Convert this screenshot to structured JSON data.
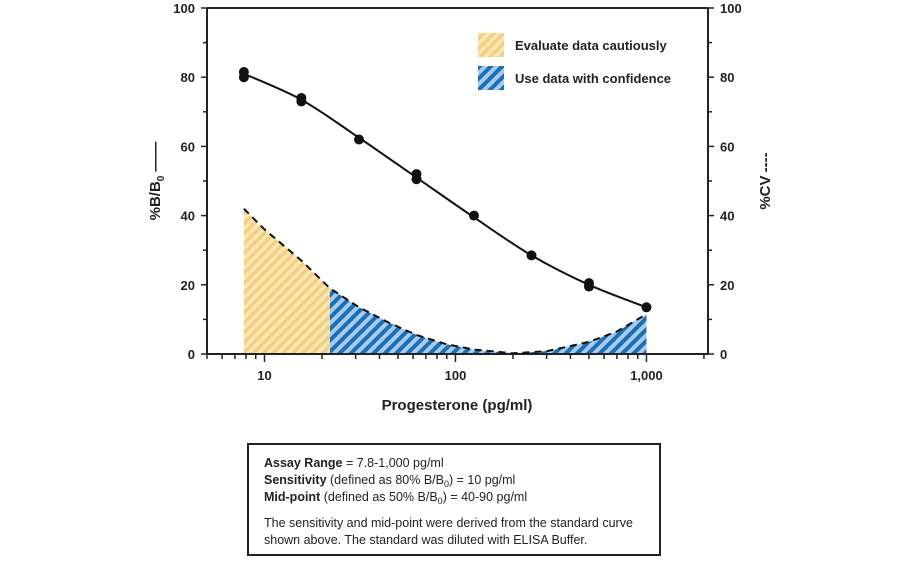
{
  "chart_data": {
    "type": "line",
    "xlabel": "Progesterone (pg/ml)",
    "ylabel_left": "%B/B0",
    "ylabel_left_main": "%B/B",
    "ylabel_left_sub": "0",
    "ylabel_left_marker": "——",
    "ylabel_right": "%CV",
    "ylabel_right_marker": "----",
    "xscale": "log",
    "xlim": [
      5,
      2100
    ],
    "ylim": [
      0,
      100
    ],
    "x_tick_labels": [
      "10",
      "100",
      "1,000"
    ],
    "x_ticks": [
      10,
      100,
      1000
    ],
    "y_ticks": [
      0,
      20,
      40,
      60,
      80,
      100
    ],
    "legend": [
      {
        "label": "Evaluate data cautiously",
        "color": "#f7d58b"
      },
      {
        "label": "Use data with confidence",
        "color": "#1a6fb5"
      }
    ],
    "legend_position": "top-right",
    "series": [
      {
        "name": "%B/B0 standard curve (points)",
        "x": [
          7.8,
          7.8,
          15.6,
          15.6,
          31.25,
          62.5,
          62.5,
          125,
          250,
          500,
          500,
          1000
        ],
        "y": [
          81.5,
          80,
          74,
          73,
          62,
          52,
          50.5,
          40,
          28.5,
          20.5,
          19.5,
          13.5
        ]
      },
      {
        "name": "%B/B0 fit",
        "x": [
          7.8,
          15.6,
          31.25,
          62.5,
          125,
          250,
          500,
          1000
        ],
        "y": [
          81,
          73.5,
          62.5,
          51,
          39.5,
          28.5,
          20,
          13.5
        ]
      },
      {
        "name": "%CV",
        "x": [
          7.8,
          10,
          15.6,
          22,
          31.25,
          45,
          62.5,
          90,
          125,
          200,
          300,
          500,
          700,
          1000
        ],
        "y": [
          42,
          36,
          27,
          19,
          13.5,
          9,
          5.5,
          2.8,
          1.3,
          0.2,
          0.8,
          3.5,
          6.5,
          11.5
        ]
      }
    ],
    "caution_cutoff_x": 22
  },
  "info": {
    "assay_label": "Assay Range",
    "assay_value": " = 7.8-1,000 pg/ml",
    "sens_label": "Sensitivity",
    "sens_pre": " (defined as 80% B/B",
    "sens_sub": "0",
    "sens_post": ") = 10 pg/ml",
    "mid_label": "Mid-point",
    "mid_pre": " (defined as 50% B/B",
    "mid_sub": "0",
    "mid_post": ") = 40-90 pg/ml",
    "note_line1": "The sensitivity and mid-point were derived from the standard curve",
    "note_line2": "shown above. The standard was diluted with ELISA Buffer."
  }
}
